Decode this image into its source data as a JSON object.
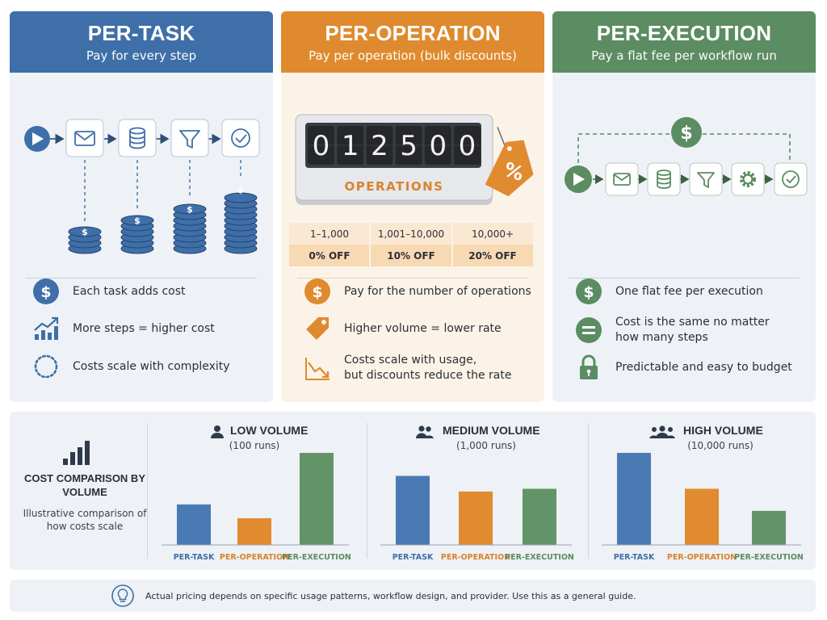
{
  "colors": {
    "task": "#3f6fa8",
    "operation": "#df8a2e",
    "execution": "#5b8c62",
    "task_bar": "#4a7ab4",
    "operation_bar": "#e08b2f",
    "execution_bar": "#639468"
  },
  "panels": [
    {
      "key": "task",
      "title": "PER-TASK",
      "subtitle": "Pay for every step",
      "icons": [
        "play-icon",
        "mail-icon",
        "database-icon",
        "filter-icon",
        "check-icon",
        "coin-stack-icon"
      ],
      "features": [
        {
          "icon": "dollar-icon",
          "text": "Each task adds cost"
        },
        {
          "icon": "trend-up-icon",
          "text": "More steps = higher cost"
        },
        {
          "icon": "dotted-circle-icon",
          "text": "Costs scale with complexity"
        }
      ]
    },
    {
      "key": "operation",
      "title": "PER-OPERATION",
      "subtitle": "Pay per operation (bulk discounts)",
      "counter_digits": [
        "0",
        "1",
        "2",
        "5",
        "0",
        "0"
      ],
      "counter_label": "OPERATIONS",
      "tag_symbol": "%",
      "tiers": [
        {
          "range": "1–1,000",
          "discount": "0% OFF"
        },
        {
          "range": "1,001–10,000",
          "discount": "10% OFF"
        },
        {
          "range": "10,000+",
          "discount": "20% OFF"
        }
      ],
      "features": [
        {
          "icon": "dollar-icon",
          "text": "Pay for the number of operations"
        },
        {
          "icon": "price-tag-icon",
          "text": "Higher volume = lower rate"
        },
        {
          "icon": "trend-down-icon",
          "text": "Costs scale with usage,",
          "text2": "but discounts reduce the rate"
        }
      ]
    },
    {
      "key": "execution",
      "title": "PER-EXECUTION",
      "subtitle": "Pay a flat fee per workflow run",
      "icons": [
        "play-icon",
        "mail-icon",
        "database-icon",
        "filter-icon",
        "gear-icon",
        "check-icon",
        "dollar-icon"
      ],
      "features": [
        {
          "icon": "dollar-icon",
          "text": "One flat fee per execution"
        },
        {
          "icon": "equals-icon",
          "text": "Cost is the same no matter",
          "text2": "how many steps"
        },
        {
          "icon": "lock-icon",
          "text": "Predictable and easy to budget"
        }
      ]
    }
  ],
  "comparison": {
    "title": "COST COMPARISON BY VOLUME",
    "subtitle": "Illustrative comparison of how costs scale",
    "icon": "bar-chart-icon"
  },
  "chart_data": [
    {
      "type": "bar",
      "title": "LOW VOLUME",
      "subtitle": "(100 runs)",
      "icon": "person-icon",
      "categories": [
        "PER-TASK",
        "PER-OPERATION",
        "PER-EXECUTION"
      ],
      "values": [
        44,
        29,
        100
      ],
      "ylim": [
        0,
        100
      ]
    },
    {
      "type": "bar",
      "title": "MEDIUM VOLUME",
      "subtitle": "(1,000 runs)",
      "icon": "two-people-icon",
      "categories": [
        "PER-TASK",
        "PER-OPERATION",
        "PER-EXECUTION"
      ],
      "values": [
        75,
        58,
        61
      ],
      "ylim": [
        0,
        100
      ]
    },
    {
      "type": "bar",
      "title": "HIGH VOLUME",
      "subtitle": "(10,000 runs)",
      "icon": "group-icon",
      "categories": [
        "PER-TASK",
        "PER-OPERATION",
        "PER-EXECUTION"
      ],
      "values": [
        100,
        61,
        37
      ],
      "ylim": [
        0,
        100
      ]
    }
  ],
  "footer": {
    "icon": "lightbulb-icon",
    "text": "Actual pricing depends on specific usage patterns, workflow design, and provider. Use this as a general guide."
  }
}
